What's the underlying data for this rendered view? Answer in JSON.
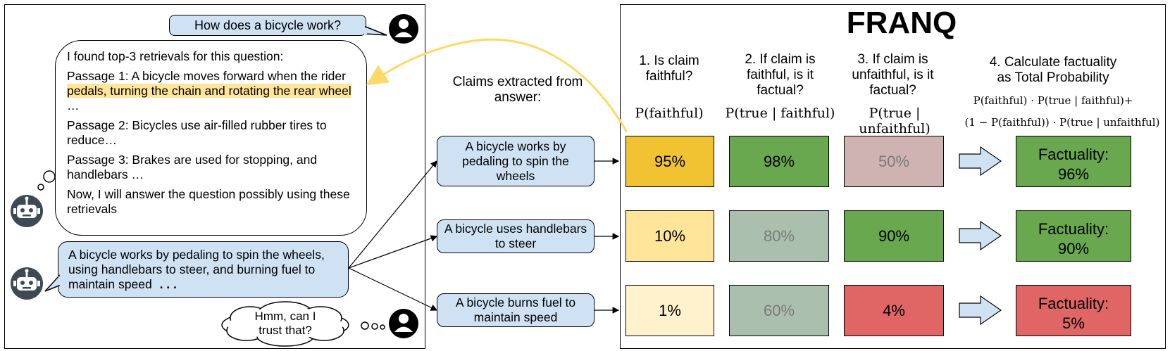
{
  "chat": {
    "user_question": "How does a bicycle work?",
    "retrieval_intro": "I found top-3 retrievals for this question:",
    "passage1_pre": "Passage 1: A bicycle moves forward when the rider ",
    "passage1_highlight": "pedals, turning the chain and rotating the rear wheel",
    "passage1_post": " …",
    "passage2": "Passage 2: Bicycles use air-filled rubber tires to reduce…",
    "passage3": "Passage 3: Brakes are used for stopping, and handlebars …",
    "retrieval_outro": "Now, I will answer the question possibly using these retrievals",
    "answer": "A bicycle works by pedaling to spin the wheels, using handlebars to steer, and burning fuel to maintain speed",
    "answer_ellipsis": ". . .",
    "user_doubt": "Hmm, can I trust that?"
  },
  "claims": {
    "header": "Claims extracted from answer:",
    "items": [
      "A bicycle works by pedaling to spin the wheels",
      "A bicycle uses handlebars to steer",
      "A bicycle burns fuel to maintain speed"
    ]
  },
  "franq": {
    "title": "FRANQ",
    "col1_title": "1. Is claim faithful?",
    "col1_formula": "P(faithful)",
    "col2_title": "2. If claim is faithful, is it factual?",
    "col2_formula": "P(true | faithful)",
    "col3_title": "3. If claim is unfaithful, is it factual?",
    "col3_formula": "P(true | unfaithful)",
    "col4_title": "4. Calculate factuality as Total Probability",
    "col4_formula_line1": "P(faithful) · P(true | faithful)+",
    "col4_formula_line2": "(1 − P(faithful)) · P(true | unfaithful)",
    "rows": [
      {
        "faithful": "95%",
        "true_faithful": "98%",
        "true_unfaithful": "50%",
        "factuality_label": "Factuality:",
        "factuality": "96%"
      },
      {
        "faithful": "10%",
        "true_faithful": "80%",
        "true_unfaithful": "90%",
        "factuality_label": "Factuality:",
        "factuality": "90%"
      },
      {
        "faithful": "1%",
        "true_faithful": "60%",
        "true_unfaithful": "4%",
        "factuality_label": "Factuality:",
        "factuality": "5%"
      }
    ]
  },
  "colors": {
    "bubble_blue": "#cfe2f3",
    "highlight_yellow": "#ffe599",
    "faithful_high": "#f1c232",
    "faithful_mid": "#ffe599",
    "faithful_low": "#fff2cc",
    "factual_green": "#6aa84f",
    "muted_green": "#aabfad",
    "muted_rose": "#cfb2b2",
    "factual_red": "#e06666",
    "arrow_yellow": "#ffd966"
  }
}
